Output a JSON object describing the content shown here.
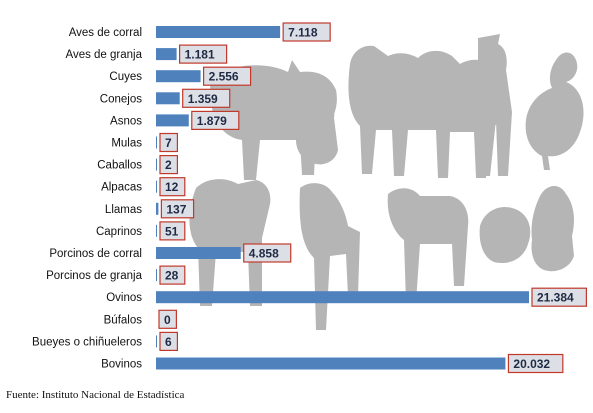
{
  "chart_data": {
    "type": "bar",
    "orientation": "horizontal",
    "categories": [
      "Aves de corral",
      "Aves de granja",
      "Cuyes",
      "Conejos",
      "Asnos",
      "Mulas",
      "Caballos",
      "Alpacas",
      "Llamas",
      "Caprinos",
      "Porcinos de corral",
      "Porcinos de granja",
      "Ovinos",
      "Búfalos",
      "Bueyes o chiñueleros",
      "Bovinos"
    ],
    "values": [
      7118,
      1181,
      2556,
      1359,
      1879,
      7,
      2,
      12,
      137,
      51,
      4858,
      28,
      21384,
      0,
      6,
      20032
    ],
    "value_labels": [
      "7.118",
      "1.181",
      "2.556",
      "1.359",
      "1.879",
      "7",
      "2",
      "12",
      "137",
      "51",
      "4.858",
      "28",
      "21.384",
      "0",
      "6",
      "20.032"
    ],
    "bar_color": "#4f81bd",
    "label_box_border": "#c0392b",
    "xlim": [
      0,
      21384
    ],
    "grid": false,
    "legend": "none",
    "background": "animal silhouettes (grey)"
  },
  "source": "Fuente: Instituto Nacional de Estadística"
}
